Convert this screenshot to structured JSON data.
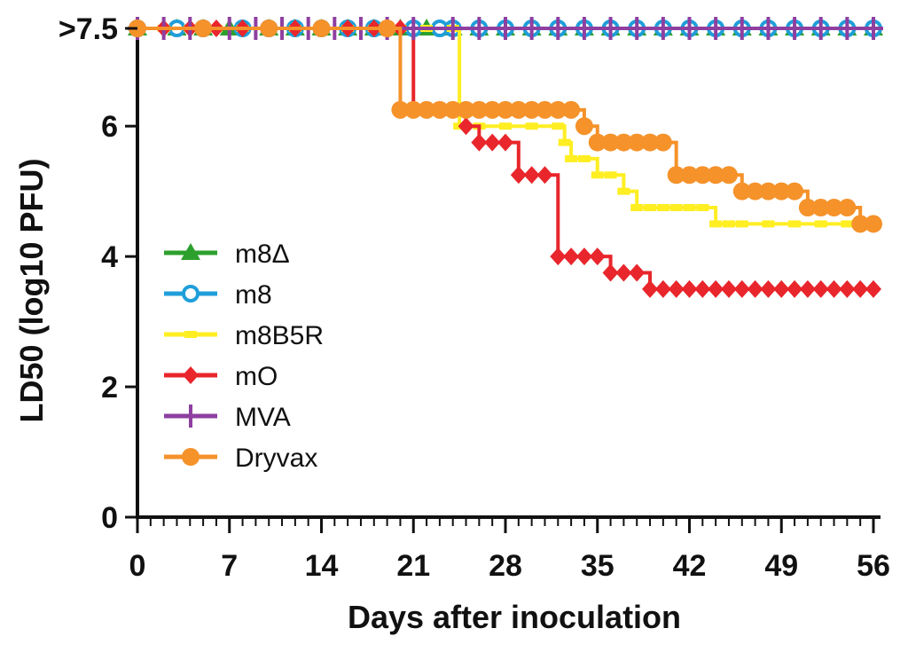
{
  "chart_data": {
    "type": "line",
    "xlabel": "Days after inoculation",
    "ylabel": "LD50 (log10 PFU)",
    "xlim": [
      0,
      56
    ],
    "ylim": [
      0,
      7.5
    ],
    "x_ticks": [
      0,
      7,
      14,
      21,
      28,
      35,
      42,
      49,
      56
    ],
    "x_tick_labels": [
      "0",
      "7",
      "14",
      "21",
      "28",
      "35",
      "42",
      "49",
      "56"
    ],
    "y_ticks": [
      0,
      2,
      4,
      6,
      7.5
    ],
    "y_tick_labels": [
      "0",
      "2",
      "4",
      "6",
      ">7.5"
    ],
    "legend_position": "left",
    "series": [
      {
        "name": "m8Δ",
        "color": "#2ca02c",
        "marker": "triangle-up",
        "x": [
          0,
          3,
          5,
          7,
          10,
          12,
          14,
          16,
          18,
          20,
          22,
          24,
          26,
          28,
          30,
          32,
          34,
          36,
          38,
          40,
          42,
          44,
          46,
          48,
          50,
          52,
          54,
          56
        ],
        "y": [
          7.5,
          7.5,
          7.5,
          7.5,
          7.5,
          7.5,
          7.5,
          7.5,
          7.5,
          7.5,
          7.5,
          7.5,
          7.5,
          7.5,
          7.5,
          7.5,
          7.5,
          7.5,
          7.5,
          7.5,
          7.5,
          7.5,
          7.5,
          7.5,
          7.5,
          7.5,
          7.5,
          7.5
        ]
      },
      {
        "name": "m8",
        "color": "#1f9ed9",
        "marker": "circle-open",
        "x": [
          0,
          3,
          5,
          8,
          10,
          12,
          14,
          16,
          18,
          21,
          23,
          24,
          26,
          28,
          30,
          32,
          34,
          36,
          38,
          40,
          42,
          44,
          46,
          48,
          50,
          52,
          54,
          56
        ],
        "y": [
          7.5,
          7.5,
          7.5,
          7.5,
          7.5,
          7.5,
          7.5,
          7.5,
          7.5,
          7.5,
          7.5,
          7.5,
          7.5,
          7.5,
          7.5,
          7.5,
          7.5,
          7.5,
          7.5,
          7.5,
          7.5,
          7.5,
          7.5,
          7.5,
          7.5,
          7.5,
          7.5,
          7.5
        ]
      },
      {
        "name": "m8B5R",
        "color": "#ffee22",
        "marker": "dash",
        "x": [
          0,
          2,
          4,
          6,
          8,
          10,
          12,
          14,
          16,
          18,
          20,
          22,
          24,
          24.5,
          26,
          28,
          30,
          32,
          32.5,
          33,
          34,
          35,
          36,
          37,
          38,
          39,
          40,
          41,
          42,
          43,
          44,
          45,
          46,
          48,
          50,
          52,
          54,
          56
        ],
        "y": [
          7.5,
          7.5,
          7.5,
          7.5,
          7.5,
          7.5,
          7.5,
          7.5,
          7.5,
          7.5,
          7.5,
          7.5,
          7.5,
          6.0,
          6.0,
          6.0,
          6.0,
          6.0,
          5.75,
          5.5,
          5.5,
          5.25,
          5.25,
          5.0,
          4.75,
          4.75,
          4.75,
          4.75,
          4.75,
          4.75,
          4.5,
          4.5,
          4.5,
          4.5,
          4.5,
          4.5,
          4.5,
          4.5
        ]
      },
      {
        "name": "mO",
        "color": "#e8262c",
        "marker": "diamond",
        "x": [
          0,
          2,
          4,
          6,
          8,
          10,
          12,
          14,
          16,
          18,
          20,
          21,
          22,
          23,
          24,
          25,
          26,
          27,
          28,
          29,
          30,
          31,
          32,
          33,
          34,
          35,
          36,
          37,
          38,
          39,
          40,
          41,
          42,
          43,
          44,
          45,
          46,
          47,
          48,
          49,
          50,
          51,
          52,
          53,
          54,
          55,
          56
        ],
        "y": [
          7.5,
          7.5,
          7.5,
          7.5,
          7.5,
          7.5,
          7.5,
          7.5,
          7.5,
          7.5,
          7.5,
          6.25,
          6.25,
          6.25,
          6.25,
          6.0,
          5.75,
          5.75,
          5.75,
          5.25,
          5.25,
          5.25,
          4.0,
          4.0,
          4.0,
          4.0,
          3.75,
          3.75,
          3.75,
          3.5,
          3.5,
          3.5,
          3.5,
          3.5,
          3.5,
          3.5,
          3.5,
          3.5,
          3.5,
          3.5,
          3.5,
          3.5,
          3.5,
          3.5,
          3.5,
          3.5,
          3.5
        ]
      },
      {
        "name": "MVA",
        "color": "#8e3fa0",
        "marker": "plus",
        "x": [
          0,
          2,
          4,
          7,
          9,
          11,
          13,
          15,
          17,
          19,
          21,
          24,
          26,
          28,
          30,
          32,
          34,
          36,
          38,
          40,
          42,
          44,
          46,
          48,
          50,
          52,
          54,
          56
        ],
        "y": [
          7.5,
          7.5,
          7.5,
          7.5,
          7.5,
          7.5,
          7.5,
          7.5,
          7.5,
          7.5,
          7.5,
          7.5,
          7.5,
          7.5,
          7.5,
          7.5,
          7.5,
          7.5,
          7.5,
          7.5,
          7.5,
          7.5,
          7.5,
          7.5,
          7.5,
          7.5,
          7.5,
          7.5
        ]
      },
      {
        "name": "Dryvax",
        "color": "#f5922a",
        "marker": "circle-filled",
        "x": [
          0,
          5,
          10,
          14,
          19,
          20,
          21,
          22,
          23,
          24,
          25,
          26,
          27,
          28,
          29,
          30,
          31,
          32,
          33,
          34,
          35,
          36,
          37,
          38,
          39,
          40,
          41,
          42,
          43,
          44,
          45,
          46,
          47,
          48,
          49,
          50,
          51,
          52,
          53,
          54,
          55,
          56
        ],
        "y": [
          7.5,
          7.5,
          7.5,
          7.5,
          7.5,
          6.25,
          6.25,
          6.25,
          6.25,
          6.25,
          6.25,
          6.25,
          6.25,
          6.25,
          6.25,
          6.25,
          6.25,
          6.25,
          6.25,
          6.0,
          5.75,
          5.75,
          5.75,
          5.75,
          5.75,
          5.75,
          5.25,
          5.25,
          5.25,
          5.25,
          5.25,
          5.0,
          5.0,
          5.0,
          5.0,
          5.0,
          4.75,
          4.75,
          4.75,
          4.75,
          4.5,
          4.5
        ]
      }
    ]
  }
}
